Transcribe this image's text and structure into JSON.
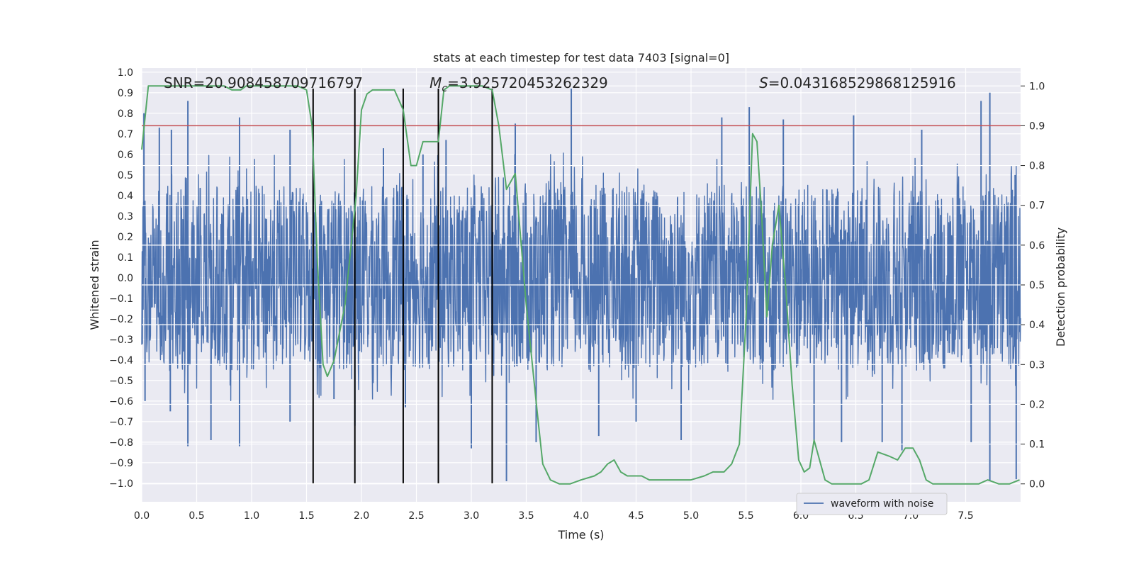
{
  "chart_data": {
    "type": "line",
    "title": "stats at each timestep for test data 7403 [signal=0]",
    "xlabel": "Time (s)",
    "ylabel": "Whitened strain",
    "ylabel_right": "Detection probability",
    "xlim": [
      0.0,
      8.0
    ],
    "ylim": [
      -1.09,
      1.02
    ],
    "ylim_right": [
      -0.045,
      1.045
    ],
    "x_ticks": [
      0.0,
      0.5,
      1.0,
      1.5,
      2.0,
      2.5,
      3.0,
      3.5,
      4.0,
      4.5,
      5.0,
      5.5,
      6.0,
      6.5,
      7.0,
      7.5
    ],
    "x_tick_labels": [
      "0.0",
      "0.5",
      "1.0",
      "1.5",
      "2.0",
      "2.5",
      "3.0",
      "3.5",
      "4.0",
      "4.5",
      "5.0",
      "5.5",
      "6.0",
      "6.5",
      "7.0",
      "7.5"
    ],
    "y_ticks": [
      1.0,
      0.9,
      0.8,
      0.7,
      0.6,
      0.5,
      0.4,
      0.3,
      0.2,
      0.1,
      0.0,
      -0.1,
      -0.2,
      -0.3,
      -0.4,
      -0.5,
      -0.6,
      -0.7,
      -0.8,
      -0.9,
      -1.0
    ],
    "y_tick_labels": [
      "1.0",
      "0.9",
      "0.8",
      "0.7",
      "0.6",
      "0.5",
      "0.4",
      "0.3",
      "0.2",
      "0.1",
      "0.0",
      "−0.1",
      "−0.2",
      "−0.3",
      "−0.4",
      "−0.5",
      "−0.6",
      "−0.7",
      "−0.8",
      "−0.9",
      "−1.0"
    ],
    "y_right_ticks": [
      1.0,
      0.9,
      0.8,
      0.7,
      0.6,
      0.5,
      0.4,
      0.3,
      0.2,
      0.1,
      0.0
    ],
    "y_right_tick_labels": [
      "1.0",
      "0.9",
      "0.8",
      "0.7",
      "0.6",
      "0.5",
      "0.4",
      "0.3",
      "0.2",
      "0.1",
      "0.0"
    ],
    "grid": true,
    "annotations": {
      "snr": "SNR=20.908458709716797",
      "mc_symbol": "M",
      "mc_sub": "c",
      "mc_value": "=3.925720453262329",
      "s_symbol": "S",
      "s_value": "=0.0431685298681259​16"
    },
    "annotation_x": {
      "snr": 0.2,
      "mc": 2.62,
      "s": 5.62
    },
    "threshold": {
      "axis": "right",
      "value": 0.9,
      "color": "#c44e52"
    },
    "vertical_markers": {
      "x": [
        1.56,
        1.94,
        2.38,
        2.7,
        3.19
      ],
      "y_range": [
        -1.0,
        0.92
      ],
      "color": "#000000"
    },
    "legend": {
      "label": "waveform with noise",
      "location": "lower-right"
    },
    "series": [
      {
        "name": "waveform with noise",
        "axis": "left",
        "color": "#4c72b0",
        "kind": "noisy-waveform",
        "duration_s": 8.0,
        "typical_range": [
          -0.45,
          0.45
        ],
        "spikes": [
          {
            "x": 0.02,
            "y": 0.8
          },
          {
            "x": 0.03,
            "y": -0.6
          },
          {
            "x": 0.16,
            "y": 0.73
          },
          {
            "x": 0.26,
            "y": -0.65
          },
          {
            "x": 0.42,
            "y": 0.86
          },
          {
            "x": 0.42,
            "y": -0.82
          },
          {
            "x": 0.27,
            "y": 0.72
          },
          {
            "x": 0.63,
            "y": -0.79
          },
          {
            "x": 0.89,
            "y": 0.78
          },
          {
            "x": 0.89,
            "y": -0.82
          },
          {
            "x": 1.35,
            "y": 0.72
          },
          {
            "x": 1.35,
            "y": -0.7
          },
          {
            "x": 1.56,
            "y": 0.65
          },
          {
            "x": 1.75,
            "y": -0.59
          },
          {
            "x": 1.94,
            "y": -0.72
          },
          {
            "x": 2.2,
            "y": 0.63
          },
          {
            "x": 2.4,
            "y": -0.63
          },
          {
            "x": 2.56,
            "y": 0.6
          },
          {
            "x": 2.77,
            "y": 0.67
          },
          {
            "x": 3.0,
            "y": -0.83
          },
          {
            "x": 3.32,
            "y": -0.99
          },
          {
            "x": 3.4,
            "y": 0.75
          },
          {
            "x": 3.59,
            "y": -0.8
          },
          {
            "x": 3.91,
            "y": 0.92
          },
          {
            "x": 4.16,
            "y": -0.77
          },
          {
            "x": 4.5,
            "y": -0.7
          },
          {
            "x": 4.91,
            "y": -0.79
          },
          {
            "x": 5.28,
            "y": 0.78
          },
          {
            "x": 5.53,
            "y": 0.83
          },
          {
            "x": 5.84,
            "y": 0.77
          },
          {
            "x": 6.12,
            "y": -0.79
          },
          {
            "x": 6.37,
            "y": -0.8
          },
          {
            "x": 6.48,
            "y": 0.79
          },
          {
            "x": 6.74,
            "y": -0.8
          },
          {
            "x": 6.92,
            "y": -0.84
          },
          {
            "x": 7.1,
            "y": 0.72
          },
          {
            "x": 7.55,
            "y": -0.8
          },
          {
            "x": 7.64,
            "y": 0.86
          },
          {
            "x": 7.72,
            "y": 0.9
          },
          {
            "x": 7.72,
            "y": -0.99
          },
          {
            "x": 7.96,
            "y": -0.98
          },
          {
            "x": 7.95,
            "y": 0.5
          }
        ]
      },
      {
        "name": "detection probability",
        "axis": "right",
        "color": "#55a868",
        "x": [
          0.0,
          0.06,
          0.13,
          0.2,
          0.3,
          0.45,
          0.6,
          0.75,
          0.82,
          0.9,
          0.95,
          1.0,
          1.05,
          1.15,
          1.3,
          1.42,
          1.5,
          1.55,
          1.6,
          1.65,
          1.69,
          1.75,
          1.85,
          1.95,
          2.0,
          2.05,
          2.1,
          2.2,
          2.3,
          2.38,
          2.45,
          2.5,
          2.56,
          2.62,
          2.7,
          2.75,
          2.8,
          2.9,
          3.0,
          3.1,
          3.19,
          3.25,
          3.32,
          3.36,
          3.4,
          3.5,
          3.6,
          3.65,
          3.72,
          3.8,
          3.9,
          4.0,
          4.12,
          4.18,
          4.24,
          4.3,
          4.36,
          4.42,
          4.48,
          4.55,
          4.62,
          4.7,
          4.8,
          4.92,
          5.0,
          5.12,
          5.2,
          5.26,
          5.3,
          5.37,
          5.44,
          5.5,
          5.56,
          5.6,
          5.64,
          5.69,
          5.74,
          5.8,
          5.86,
          5.92,
          5.98,
          6.03,
          6.08,
          6.12,
          6.18,
          6.22,
          6.28,
          6.35,
          6.45,
          6.55,
          6.62,
          6.7,
          6.8,
          6.88,
          6.95,
          7.02,
          7.08,
          7.14,
          7.2,
          7.3,
          7.42,
          7.55,
          7.62,
          7.7,
          7.8,
          7.9,
          7.99
        ],
        "y": [
          0.84,
          1.0,
          1.0,
          1.0,
          1.0,
          1.0,
          1.0,
          1.0,
          0.99,
          0.99,
          1.0,
          1.0,
          1.0,
          1.0,
          1.0,
          1.0,
          0.99,
          0.9,
          0.55,
          0.3,
          0.27,
          0.31,
          0.45,
          0.72,
          0.94,
          0.98,
          0.99,
          0.99,
          0.99,
          0.94,
          0.8,
          0.8,
          0.86,
          0.86,
          0.86,
          0.99,
          1.0,
          1.0,
          1.0,
          1.0,
          0.99,
          0.9,
          0.74,
          0.76,
          0.78,
          0.45,
          0.18,
          0.05,
          0.01,
          0.0,
          0.0,
          0.01,
          0.02,
          0.03,
          0.05,
          0.06,
          0.03,
          0.02,
          0.02,
          0.02,
          0.01,
          0.01,
          0.01,
          0.01,
          0.01,
          0.02,
          0.03,
          0.03,
          0.03,
          0.05,
          0.1,
          0.41,
          0.88,
          0.86,
          0.69,
          0.42,
          0.6,
          0.7,
          0.5,
          0.25,
          0.06,
          0.03,
          0.04,
          0.11,
          0.05,
          0.01,
          0.0,
          0.0,
          0.0,
          0.0,
          0.01,
          0.08,
          0.07,
          0.06,
          0.09,
          0.09,
          0.06,
          0.01,
          0.0,
          0.0,
          0.0,
          0.0,
          0.0,
          0.01,
          0.0,
          0.0,
          0.01
        ]
      }
    ]
  }
}
